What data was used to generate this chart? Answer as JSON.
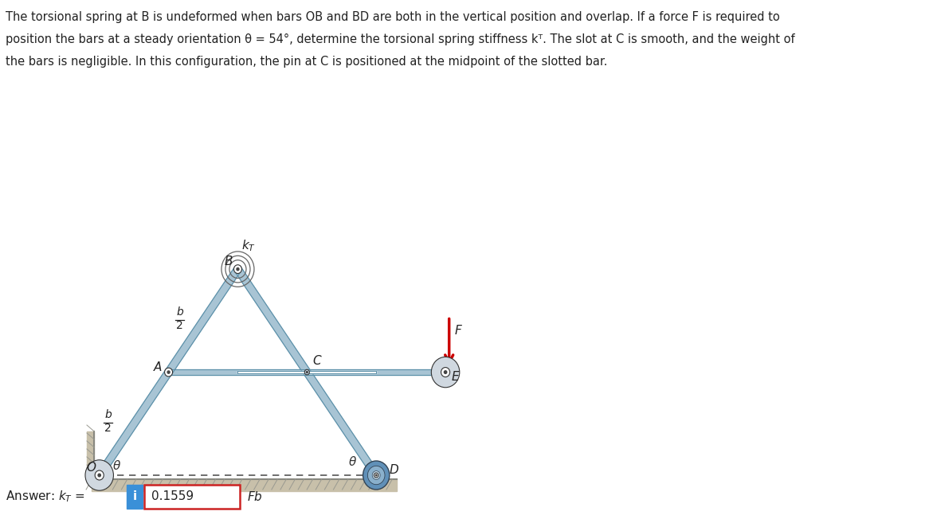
{
  "fig_width": 11.71,
  "fig_height": 6.52,
  "bg_color": "#ffffff",
  "problem_text": "The torsional spring at B is undeformed when bars OB and BD are both in the vertical position and overlap. If a force F is required to\nposition the bars at a steady orientation θ = 54°, determine the torsional spring stiffness kᵀ. The slot at C is smooth, and the weight of\nthe bars is negligible. In this configuration, the pin at C is positioned at the midpoint of the slotted bar.",
  "bar_color": "#a8c4d4",
  "bar_edge_color": "#5a8fa8",
  "bar_width": 0.06,
  "theta_deg": 54,
  "answer_text": "0.1559",
  "answer_label": "Answer: kᵀ =",
  "answer_units": "Fb",
  "floor_color": "#c8bfa8",
  "pin_color": "#ffffff",
  "pin_edge": "#333333",
  "wheel_color": "#6090b8",
  "wheel_edge": "#334455",
  "spring_color": "#555555",
  "force_color": "#cc0000",
  "dashed_color": "#555555"
}
